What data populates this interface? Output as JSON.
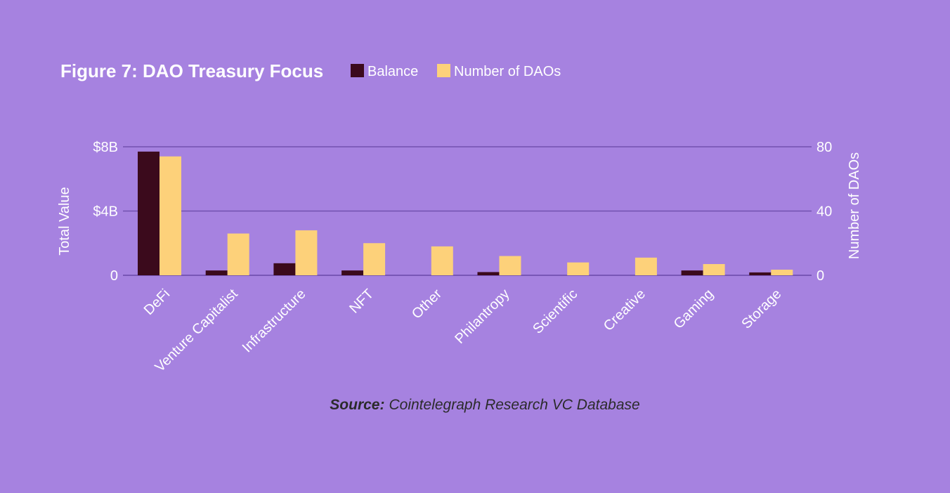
{
  "chart_data": {
    "type": "bar",
    "title": "Figure 7: DAO Treasury Focus",
    "categories": [
      "DeFi",
      "Venture Capitalist",
      "Infrastructure",
      "NFT",
      "Other",
      "Philantropy",
      "Scientific",
      "Creative",
      "Gaming",
      "Storage"
    ],
    "series": [
      {
        "name": "Balance",
        "axis": "left",
        "color": "#3b0a1c",
        "values": [
          7.7,
          0.3,
          0.75,
          0.3,
          0.0,
          0.2,
          0.0,
          0.0,
          0.3,
          0.18
        ]
      },
      {
        "name": "Number of DAOs",
        "axis": "right",
        "color": "#fdd17a",
        "values": [
          74,
          26,
          28,
          20,
          18,
          12,
          8,
          11,
          7,
          3.5
        ]
      }
    ],
    "ylabel": "Total Value",
    "y2label": "Number of DAOs",
    "ylim": [
      0,
      8
    ],
    "y2lim": [
      0,
      80
    ],
    "yticks": [
      {
        "value": 0,
        "label": "0"
      },
      {
        "value": 4,
        "label": "$4B"
      },
      {
        "value": 8,
        "label": "$8B"
      }
    ],
    "y2ticks": [
      {
        "value": 0,
        "label": "0"
      },
      {
        "value": 40,
        "label": "40"
      },
      {
        "value": 80,
        "label": "80"
      }
    ],
    "grid": true,
    "legend_position": "top",
    "source_label": "Source:",
    "source_text": "Cointelegraph Research VC Database"
  },
  "colors": {
    "background": "#a682e0",
    "gridline": "#7251b0",
    "text": "#ffffff",
    "source_text": "#2b2b2b"
  }
}
